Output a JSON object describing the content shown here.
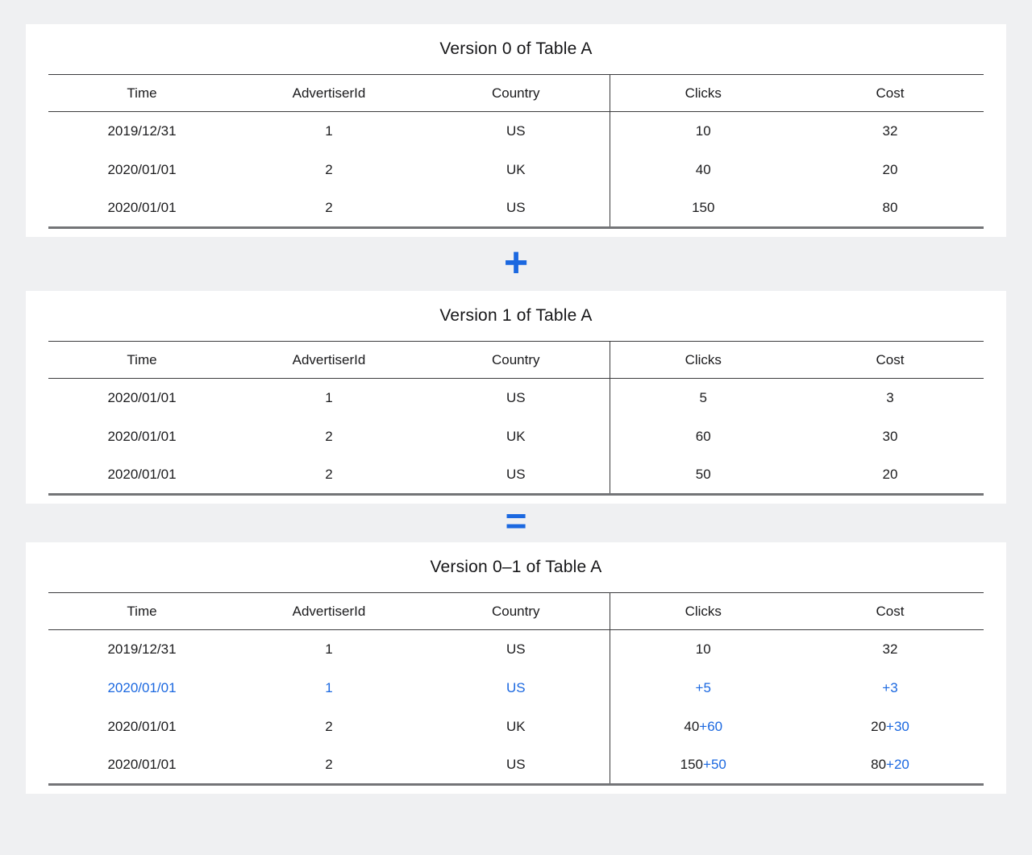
{
  "page": {
    "background": "#eff0f2",
    "card_background": "#ffffff"
  },
  "accent_color": "#1b68e0",
  "operators": {
    "plus": "+",
    "equals": "="
  },
  "tables": [
    {
      "title": "Version 0 of Table A",
      "columns": [
        "Time",
        "AdvertiserId",
        "Country",
        "Clicks",
        "Cost"
      ],
      "rows": [
        [
          [
            {
              "text": "2019/12/31",
              "diff": false
            }
          ],
          [
            {
              "text": "1",
              "diff": false
            }
          ],
          [
            {
              "text": "US",
              "diff": false
            }
          ],
          [
            {
              "text": "10",
              "diff": false
            }
          ],
          [
            {
              "text": "32",
              "diff": false
            }
          ]
        ],
        [
          [
            {
              "text": "2020/01/01",
              "diff": false
            }
          ],
          [
            {
              "text": "2",
              "diff": false
            }
          ],
          [
            {
              "text": "UK",
              "diff": false
            }
          ],
          [
            {
              "text": "40",
              "diff": false
            }
          ],
          [
            {
              "text": "20",
              "diff": false
            }
          ]
        ],
        [
          [
            {
              "text": "2020/01/01",
              "diff": false
            }
          ],
          [
            {
              "text": "2",
              "diff": false
            }
          ],
          [
            {
              "text": "US",
              "diff": false
            }
          ],
          [
            {
              "text": "150",
              "diff": false
            }
          ],
          [
            {
              "text": "80",
              "diff": false
            }
          ]
        ]
      ]
    },
    {
      "title": "Version 1 of Table A",
      "columns": [
        "Time",
        "AdvertiserId",
        "Country",
        "Clicks",
        "Cost"
      ],
      "rows": [
        [
          [
            {
              "text": "2020/01/01",
              "diff": false
            }
          ],
          [
            {
              "text": "1",
              "diff": false
            }
          ],
          [
            {
              "text": "US",
              "diff": false
            }
          ],
          [
            {
              "text": "5",
              "diff": false
            }
          ],
          [
            {
              "text": "3",
              "diff": false
            }
          ]
        ],
        [
          [
            {
              "text": "2020/01/01",
              "diff": false
            }
          ],
          [
            {
              "text": "2",
              "diff": false
            }
          ],
          [
            {
              "text": "UK",
              "diff": false
            }
          ],
          [
            {
              "text": "60",
              "diff": false
            }
          ],
          [
            {
              "text": "30",
              "diff": false
            }
          ]
        ],
        [
          [
            {
              "text": "2020/01/01",
              "diff": false
            }
          ],
          [
            {
              "text": "2",
              "diff": false
            }
          ],
          [
            {
              "text": "US",
              "diff": false
            }
          ],
          [
            {
              "text": "50",
              "diff": false
            }
          ],
          [
            {
              "text": "20",
              "diff": false
            }
          ]
        ]
      ]
    },
    {
      "title": "Version 0–1 of Table A",
      "columns": [
        "Time",
        "AdvertiserId",
        "Country",
        "Clicks",
        "Cost"
      ],
      "rows": [
        [
          [
            {
              "text": "2019/12/31",
              "diff": false
            }
          ],
          [
            {
              "text": "1",
              "diff": false
            }
          ],
          [
            {
              "text": "US",
              "diff": false
            }
          ],
          [
            {
              "text": "10",
              "diff": false
            }
          ],
          [
            {
              "text": "32",
              "diff": false
            }
          ]
        ],
        [
          [
            {
              "text": "2020/01/01",
              "diff": true
            }
          ],
          [
            {
              "text": "1",
              "diff": true
            }
          ],
          [
            {
              "text": "US",
              "diff": true
            }
          ],
          [
            {
              "text": "+5",
              "diff": true
            }
          ],
          [
            {
              "text": "+3",
              "diff": true
            }
          ]
        ],
        [
          [
            {
              "text": "2020/01/01",
              "diff": false
            }
          ],
          [
            {
              "text": "2",
              "diff": false
            }
          ],
          [
            {
              "text": "UK",
              "diff": false
            }
          ],
          [
            {
              "text": "40",
              "diff": false
            },
            {
              "text": "+60",
              "diff": true
            }
          ],
          [
            {
              "text": "20",
              "diff": false
            },
            {
              "text": "+30",
              "diff": true
            }
          ]
        ],
        [
          [
            {
              "text": "2020/01/01",
              "diff": false
            }
          ],
          [
            {
              "text": "2",
              "diff": false
            }
          ],
          [
            {
              "text": "US",
              "diff": false
            }
          ],
          [
            {
              "text": "150",
              "diff": false
            },
            {
              "text": "+50",
              "diff": true
            }
          ],
          [
            {
              "text": "80",
              "diff": false
            },
            {
              "text": "+20",
              "diff": true
            }
          ]
        ]
      ]
    }
  ]
}
